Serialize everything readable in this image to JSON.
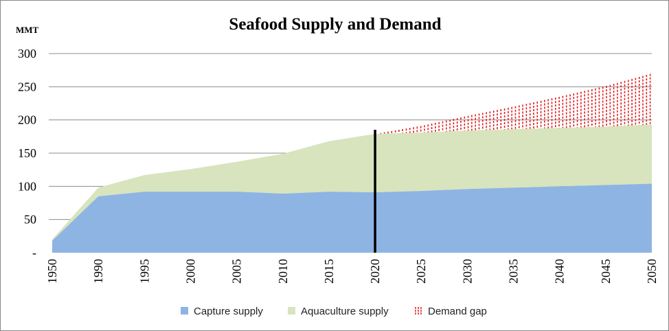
{
  "chart_data": {
    "type": "area",
    "title": "Seafood Supply and Demand",
    "unit_label": "MMT",
    "x": [
      "1950",
      "1990",
      "1995",
      "2000",
      "2005",
      "2010",
      "2015",
      "2020",
      "2025",
      "2030",
      "2035",
      "2040",
      "2045",
      "2050"
    ],
    "y_ticks": [
      "-",
      "50",
      "100",
      "150",
      "200",
      "250",
      "300"
    ],
    "y_tick_values": [
      0,
      50,
      100,
      150,
      200,
      250,
      300
    ],
    "ylim": [
      0,
      300
    ],
    "grid": true,
    "stacked": true,
    "legend_position": "bottom",
    "series": [
      {
        "name": "Capture supply",
        "color": "#8eb4e3",
        "style": "area",
        "values": [
          18,
          85,
          92,
          92,
          92,
          89,
          92,
          91,
          93,
          96,
          98,
          100,
          102,
          104
        ]
      },
      {
        "name": "Aquaculture supply",
        "color": "#d7e4bd",
        "style": "area",
        "values": [
          2,
          13,
          25,
          34,
          45,
          60,
          76,
          88,
          88,
          88,
          88,
          88,
          88,
          89
        ]
      },
      {
        "name": "Demand gap",
        "color": "#e31a1c",
        "style": "hatched",
        "values": [
          0,
          0,
          0,
          0,
          0,
          0,
          0,
          0,
          10,
          22,
          34,
          47,
          61,
          77
        ]
      }
    ],
    "marker_x": "2020"
  }
}
